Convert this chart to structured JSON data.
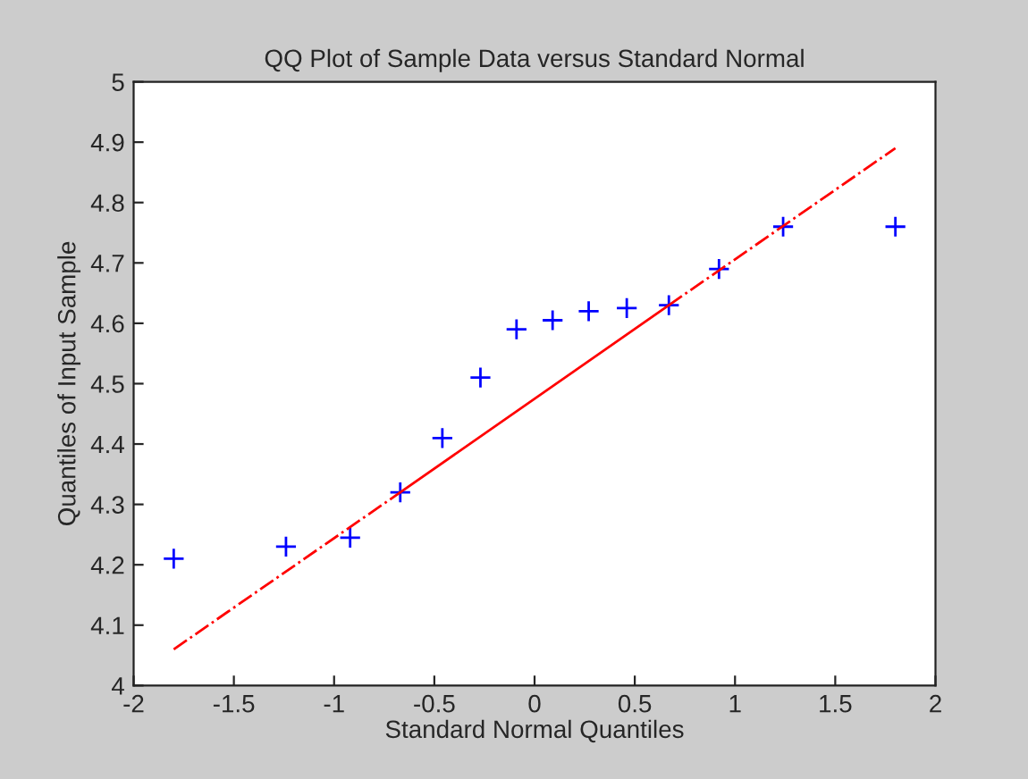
{
  "chart_data": {
    "type": "scatter",
    "title": "QQ Plot of Sample Data versus Standard Normal",
    "xlabel": "Standard Normal Quantiles",
    "ylabel": "Quantiles of Input Sample",
    "xlim": [
      -2,
      2
    ],
    "ylim": [
      4,
      5
    ],
    "xticks": [
      -2,
      -1.5,
      -1,
      -0.5,
      0,
      0.5,
      1,
      1.5,
      2
    ],
    "yticks": [
      4,
      4.1,
      4.2,
      4.3,
      4.4,
      4.5,
      4.6,
      4.7,
      4.8,
      4.9,
      5
    ],
    "grid": false,
    "legend": false,
    "series": [
      {
        "color": "#0000ff",
        "marker": "cross",
        "x": [
          -1.8,
          -1.24,
          -0.92,
          -0.67,
          -0.46,
          -0.27,
          -0.09,
          0.09,
          0.27,
          0.46,
          0.67,
          0.92,
          1.24,
          1.8
        ],
        "values": [
          4.21,
          4.23,
          4.245,
          4.32,
          4.41,
          4.51,
          4.59,
          4.605,
          4.62,
          4.625,
          4.63,
          4.69,
          4.76,
          4.76
        ]
      },
      {
        "type": "line",
        "color": "#ff0000",
        "line_style": "dashed",
        "marker": "none",
        "x": [
          -1.8,
          -0.67
        ],
        "values": [
          4.06,
          4.32
        ]
      },
      {
        "type": "line",
        "color": "#ff0000",
        "line_style": "solid",
        "marker": "none",
        "x": [
          -0.67,
          0.67
        ],
        "values": [
          4.32,
          4.63
        ]
      },
      {
        "type": "line",
        "color": "#ff0000",
        "line_style": "dashed",
        "marker": "none",
        "x": [
          0.67,
          1.8
        ],
        "values": [
          4.63,
          4.89
        ]
      }
    ]
  }
}
